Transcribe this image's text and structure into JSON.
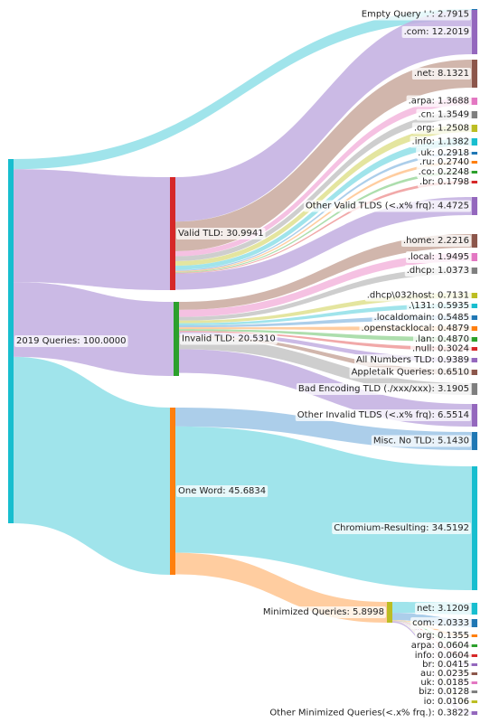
{
  "chart_data": {
    "type": "sankey",
    "nodes": [
      {
        "id": "root",
        "label": "2019 Queries: 100.0000",
        "value": 100.0,
        "color": "#17becf"
      },
      {
        "id": "empty",
        "label": "Empty Query '.': 2.7915",
        "value": 2.7915,
        "color": "#1f77b4"
      },
      {
        "id": "valid",
        "label": "Valid TLD: 30.9941",
        "value": 30.9941,
        "color": "#d62728"
      },
      {
        "id": "invalid",
        "label": "Invalid TLD: 20.5310",
        "value": 20.531,
        "color": "#2ca02c"
      },
      {
        "id": "oneword",
        "label": "One Word: 45.6834",
        "value": 45.6834,
        "color": "#ff7f0e"
      },
      {
        "id": "com",
        "label": ".com: 12.2019",
        "value": 12.2019,
        "color": "#9467bd"
      },
      {
        "id": "net",
        "label": ".net: 8.1321",
        "value": 8.1321,
        "color": "#8c564b"
      },
      {
        "id": "arpa",
        "label": ".arpa: 1.3688",
        "value": 1.3688,
        "color": "#e377c2"
      },
      {
        "id": "cn",
        "label": ".cn: 1.3549",
        "value": 1.3549,
        "color": "#7f7f7f"
      },
      {
        "id": "org",
        "label": ".org: 1.2508",
        "value": 1.2508,
        "color": "#bcbd22"
      },
      {
        "id": "info",
        "label": ".info: 1.1382",
        "value": 1.1382,
        "color": "#17becf"
      },
      {
        "id": "uk",
        "label": ".uk: 0.2918",
        "value": 0.2918,
        "color": "#1f77b4"
      },
      {
        "id": "ru",
        "label": ".ru: 0.2740",
        "value": 0.274,
        "color": "#ff7f0e"
      },
      {
        "id": "co",
        "label": ".co: 0.2248",
        "value": 0.2248,
        "color": "#2ca02c"
      },
      {
        "id": "br",
        "label": ".br: 0.1798",
        "value": 0.1798,
        "color": "#d62728"
      },
      {
        "id": "othervalid",
        "label": "Other Valid TLDS (<.x% frq): 4.4725",
        "value": 4.4725,
        "color": "#9467bd"
      },
      {
        "id": "home",
        "label": ".home: 2.2216",
        "value": 2.2216,
        "color": "#8c564b"
      },
      {
        "id": "local",
        "label": ".local: 1.9495",
        "value": 1.9495,
        "color": "#e377c2"
      },
      {
        "id": "dhcp",
        "label": ".dhcp: 1.0373",
        "value": 1.0373,
        "color": "#7f7f7f"
      },
      {
        "id": "dhcp032",
        "label": ".dhcp\\032host: 0.7131",
        "value": 0.7131,
        "color": "#bcbd22"
      },
      {
        "id": "x131",
        "label": ".\\131: 0.5935",
        "value": 0.5935,
        "color": "#17becf"
      },
      {
        "id": "localdomain",
        "label": ".localdomain: 0.5485",
        "value": 0.5485,
        "color": "#1f77b4"
      },
      {
        "id": "openstack",
        "label": ".openstacklocal: 0.4879",
        "value": 0.4879,
        "color": "#ff7f0e"
      },
      {
        "id": "lan",
        "label": ".lan: 0.4870",
        "value": 0.487,
        "color": "#2ca02c"
      },
      {
        "id": "null",
        "label": ".null: 0.3024",
        "value": 0.3024,
        "color": "#d62728"
      },
      {
        "id": "allnum",
        "label": "All Numbers TLD: 0.9389",
        "value": 0.9389,
        "color": "#9467bd"
      },
      {
        "id": "appletalk",
        "label": "Appletalk Queries: 0.6510",
        "value": 0.651,
        "color": "#8c564b"
      },
      {
        "id": "badenc",
        "label": "Bad Encoding TLD (./xxx/xxx): 3.1905",
        "value": 3.1905,
        "color": "#7f7f7f"
      },
      {
        "id": "otherinvalid",
        "label": "Other Invalid TLDS (<.x% frq): 6.5514",
        "value": 6.5514,
        "color": "#9467bd"
      },
      {
        "id": "misc",
        "label": "Misc. No TLD: 5.1430",
        "value": 5.143,
        "color": "#1f77b4"
      },
      {
        "id": "chromium",
        "label": "Chromium-Resulting: 34.5192",
        "value": 34.5192,
        "color": "#17becf"
      },
      {
        "id": "minimized",
        "label": "Minimized Queries: 5.8998",
        "value": 5.8998,
        "color": "#bcbd22"
      },
      {
        "id": "mnet",
        "label": "net: 3.1209",
        "value": 3.1209,
        "color": "#17becf"
      },
      {
        "id": "mcom",
        "label": "com: 2.0333",
        "value": 2.0333,
        "color": "#1f77b4"
      },
      {
        "id": "morg",
        "label": "org: 0.1355",
        "value": 0.1355,
        "color": "#ff7f0e"
      },
      {
        "id": "marpa",
        "label": "arpa: 0.0604",
        "value": 0.0604,
        "color": "#2ca02c"
      },
      {
        "id": "minfo",
        "label": "info: 0.0604",
        "value": 0.0604,
        "color": "#d62728"
      },
      {
        "id": "mbr",
        "label": "br: 0.0415",
        "value": 0.0415,
        "color": "#9467bd"
      },
      {
        "id": "mau",
        "label": "au: 0.0235",
        "value": 0.0235,
        "color": "#8c564b"
      },
      {
        "id": "muk",
        "label": "uk: 0.0185",
        "value": 0.0185,
        "color": "#e377c2"
      },
      {
        "id": "mbiz",
        "label": "biz: 0.0128",
        "value": 0.0128,
        "color": "#7f7f7f"
      },
      {
        "id": "mio",
        "label": "io: 0.0106",
        "value": 0.0106,
        "color": "#bcbd22"
      },
      {
        "id": "mother",
        "label": "Other Minimized Queries(<.x% frq.): 0.3822",
        "value": 0.3822,
        "color": "#9467bd"
      }
    ],
    "links": [
      {
        "source": "root",
        "target": "empty",
        "value": 2.7915
      },
      {
        "source": "root",
        "target": "valid",
        "value": 30.9941
      },
      {
        "source": "root",
        "target": "invalid",
        "value": 20.531
      },
      {
        "source": "root",
        "target": "oneword",
        "value": 45.6834
      },
      {
        "source": "valid",
        "target": "com",
        "value": 12.2019
      },
      {
        "source": "valid",
        "target": "net",
        "value": 8.1321
      },
      {
        "source": "valid",
        "target": "arpa",
        "value": 1.3688
      },
      {
        "source": "valid",
        "target": "cn",
        "value": 1.3549
      },
      {
        "source": "valid",
        "target": "org",
        "value": 1.2508
      },
      {
        "source": "valid",
        "target": "info",
        "value": 1.1382
      },
      {
        "source": "valid",
        "target": "uk",
        "value": 0.2918
      },
      {
        "source": "valid",
        "target": "ru",
        "value": 0.274
      },
      {
        "source": "valid",
        "target": "co",
        "value": 0.2248
      },
      {
        "source": "valid",
        "target": "br",
        "value": 0.1798
      },
      {
        "source": "valid",
        "target": "othervalid",
        "value": 4.4725
      },
      {
        "source": "invalid",
        "target": "home",
        "value": 2.2216
      },
      {
        "source": "invalid",
        "target": "local",
        "value": 1.9495
      },
      {
        "source": "invalid",
        "target": "dhcp",
        "value": 1.0373
      },
      {
        "source": "invalid",
        "target": "dhcp032",
        "value": 0.7131
      },
      {
        "source": "invalid",
        "target": "x131",
        "value": 0.5935
      },
      {
        "source": "invalid",
        "target": "localdomain",
        "value": 0.5485
      },
      {
        "source": "invalid",
        "target": "openstack",
        "value": 0.4879
      },
      {
        "source": "invalid",
        "target": "lan",
        "value": 0.487
      },
      {
        "source": "invalid",
        "target": "null",
        "value": 0.3024
      },
      {
        "source": "invalid",
        "target": "allnum",
        "value": 0.9389
      },
      {
        "source": "invalid",
        "target": "appletalk",
        "value": 0.651
      },
      {
        "source": "invalid",
        "target": "badenc",
        "value": 3.1905
      },
      {
        "source": "invalid",
        "target": "otherinvalid",
        "value": 6.5514
      },
      {
        "source": "oneword",
        "target": "misc",
        "value": 5.143
      },
      {
        "source": "oneword",
        "target": "chromium",
        "value": 34.5192
      },
      {
        "source": "oneword",
        "target": "minimized",
        "value": 5.8998
      },
      {
        "source": "minimized",
        "target": "mnet",
        "value": 3.1209
      },
      {
        "source": "minimized",
        "target": "mcom",
        "value": 2.0333
      },
      {
        "source": "minimized",
        "target": "morg",
        "value": 0.1355
      },
      {
        "source": "minimized",
        "target": "marpa",
        "value": 0.0604
      },
      {
        "source": "minimized",
        "target": "minfo",
        "value": 0.0604
      },
      {
        "source": "minimized",
        "target": "mbr",
        "value": 0.0415
      },
      {
        "source": "minimized",
        "target": "mau",
        "value": 0.0235
      },
      {
        "source": "minimized",
        "target": "muk",
        "value": 0.0185
      },
      {
        "source": "minimized",
        "target": "mbiz",
        "value": 0.0128
      },
      {
        "source": "minimized",
        "target": "mio",
        "value": 0.0106
      },
      {
        "source": "minimized",
        "target": "mother",
        "value": 0.3822
      }
    ]
  }
}
